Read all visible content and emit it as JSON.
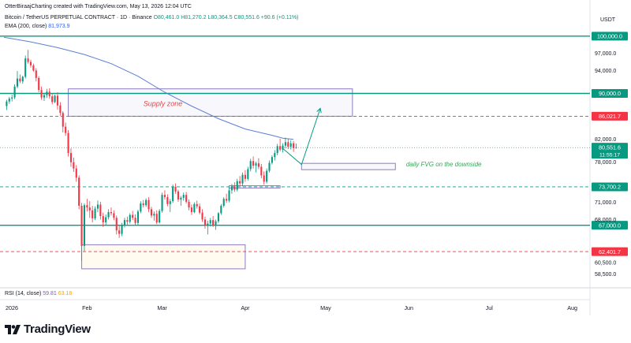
{
  "header": {
    "credit": "OtterBiraajCharting created with TradingView.com, May 13, 2026 12:04 UTC",
    "symbol": "Bitcoin / TetherUS PERPETUAL CONTRACT · 1D · Binance",
    "ohlc": "O80,461.0 H81,270.2 L80,364.5 C80,551.6 +90.6 (+0.11%)",
    "ema_label": "EMA (200, close)",
    "ema_value": "81,973.9",
    "currency": "USDT"
  },
  "rsi": {
    "label": "RSI (14, close)",
    "value1": "59.81",
    "value2": "63.18"
  },
  "brand": {
    "name": "TradingView"
  },
  "colors": {
    "up": "#089981",
    "down": "#f23645",
    "ema": "#5b7fd6",
    "level": "#089981",
    "zone": "#8e7cc3",
    "fvg_text": "#3aa55a",
    "supply_text": "#e64545"
  },
  "chart_data": {
    "type": "candlestick",
    "ylim": [
      56500,
      100800
    ],
    "x_tick_labels": [
      "2026",
      "Feb",
      "Mar",
      "Apr",
      "May",
      "Jun",
      "Jul",
      "Aug"
    ],
    "y_tick_labels": [
      "97,000.0",
      "94,000.0",
      "82,000.0",
      "78,000.0",
      "71,000.0",
      "68,000.0",
      "60,500.0",
      "58,500.0"
    ],
    "y_tick_values": [
      97000,
      94000,
      82000,
      78000,
      71000,
      68000,
      60500,
      58500
    ],
    "x_tick_days": [
      0,
      31,
      59,
      90,
      120,
      151,
      181,
      212
    ],
    "price_levels": [
      {
        "label": "100,000.0",
        "price": 100000,
        "style": "solid",
        "color": "#089981"
      },
      {
        "label": "90,000.0",
        "price": 90000,
        "style": "solid",
        "color": "#089981"
      },
      {
        "label": "86,021.7",
        "price": 86021.7,
        "style": "dashed",
        "color": "#f23645"
      },
      {
        "label": "73,700.2",
        "price": 73700.2,
        "style": "dashed",
        "color": "#089981"
      },
      {
        "label": "67,000.0",
        "price": 67000,
        "style": "solid",
        "color": "#089981"
      },
      {
        "label": "62,401.7",
        "price": 62401.7,
        "style": "dashed",
        "color": "#f23645"
      }
    ],
    "current_price": {
      "label": "80,551.6",
      "countdown": "11:55:17",
      "price": 80551.6
    },
    "annotations": [
      {
        "text": "Supply zone",
        "day": 52,
        "price": 87800
      },
      {
        "text": "daily FVG on the downside",
        "day": 150,
        "price": 77300
      }
    ],
    "zones": [
      {
        "name": "supply-zone",
        "d0": 24,
        "d1": 130,
        "p0": 86021.7,
        "p1": 90800
      },
      {
        "name": "daily-fvg-zone",
        "d0": 111,
        "d1": 146,
        "p0": 76700,
        "p1": 77800
      },
      {
        "name": "demand-zone",
        "d0": 29,
        "d1": 90,
        "p0": 59400,
        "p1": 63600
      },
      {
        "name": "small-fvg-zone",
        "d0": 84,
        "d1": 103,
        "p0": 73500,
        "p1": 73900
      }
    ],
    "projection": [
      [
        104,
        80400
      ],
      [
        111,
        77600
      ],
      [
        118,
        87400
      ]
    ],
    "ema": [
      [
        0,
        99800
      ],
      [
        10,
        99000
      ],
      [
        20,
        98000
      ],
      [
        30,
        96800
      ],
      [
        40,
        95200
      ],
      [
        50,
        93000
      ],
      [
        60,
        90200
      ],
      [
        70,
        87800
      ],
      [
        80,
        85600
      ],
      [
        90,
        83800
      ],
      [
        100,
        82700
      ],
      [
        104,
        82200
      ],
      [
        108,
        81974
      ]
    ],
    "candles": [
      [
        1,
        87800,
        88900,
        87100,
        88600
      ],
      [
        2,
        88600,
        89400,
        88200,
        89100
      ],
      [
        3,
        89100,
        89800,
        88600,
        89300
      ],
      [
        4,
        89300,
        91600,
        89000,
        91200
      ],
      [
        5,
        91200,
        93900,
        90900,
        92600
      ],
      [
        6,
        92600,
        93300,
        91800,
        92100
      ],
      [
        7,
        92100,
        93100,
        91700,
        92900
      ],
      [
        8,
        92900,
        96600,
        92600,
        96100
      ],
      [
        9,
        96100,
        97600,
        95200,
        95500
      ],
      [
        10,
        95500,
        95900,
        94500,
        94900
      ],
      [
        11,
        94900,
        95200,
        93800,
        94000
      ],
      [
        12,
        94000,
        94400,
        92100,
        92700
      ],
      [
        13,
        92700,
        93000,
        90200,
        90600
      ],
      [
        14,
        90600,
        91200,
        88900,
        89300
      ],
      [
        15,
        89300,
        90100,
        88700,
        89700
      ],
      [
        16,
        89700,
        90800,
        89200,
        90300
      ],
      [
        17,
        90300,
        90900,
        89100,
        89500
      ],
      [
        18,
        89500,
        89900,
        88100,
        88500
      ],
      [
        19,
        88500,
        89800,
        88300,
        89600
      ],
      [
        20,
        89600,
        90200,
        87200,
        87900
      ],
      [
        21,
        87900,
        88500,
        86100,
        86600
      ],
      [
        22,
        86600,
        86900,
        83200,
        84200
      ],
      [
        23,
        84200,
        84900,
        82600,
        83100
      ],
      [
        24,
        83100,
        83600,
        79000,
        79600
      ],
      [
        25,
        79600,
        80400,
        77200,
        78000
      ],
      [
        26,
        78000,
        78800,
        76300,
        76900
      ],
      [
        27,
        76900,
        77500,
        74600,
        75300
      ],
      [
        28,
        75300,
        75700,
        69800,
        70400
      ],
      [
        29,
        70400,
        70900,
        60800,
        63400
      ],
      [
        30,
        63400,
        70800,
        62500,
        70500
      ],
      [
        31,
        70500,
        71600,
        69400,
        70100
      ],
      [
        32,
        70100,
        71200,
        68300,
        69600
      ],
      [
        33,
        69600,
        70400,
        67500,
        68200
      ],
      [
        34,
        68200,
        70300,
        67900,
        69900
      ],
      [
        35,
        69900,
        71300,
        69300,
        70600
      ],
      [
        36,
        70600,
        71100,
        68000,
        68600
      ],
      [
        37,
        68600,
        69200,
        66700,
        67500
      ],
      [
        38,
        67500,
        68900,
        67100,
        68400
      ],
      [
        39,
        68400,
        69800,
        68000,
        69300
      ],
      [
        40,
        69300,
        70100,
        68700,
        69100
      ],
      [
        41,
        69100,
        69600,
        67900,
        68300
      ],
      [
        42,
        68300,
        68700,
        65400,
        66100
      ],
      [
        43,
        66100,
        66900,
        64800,
        65500
      ],
      [
        44,
        65500,
        67400,
        65100,
        67000
      ],
      [
        45,
        67000,
        68300,
        66600,
        67900
      ],
      [
        46,
        67900,
        68500,
        67100,
        67600
      ],
      [
        47,
        67600,
        69100,
        67300,
        68800
      ],
      [
        48,
        68800,
        69500,
        67900,
        68300
      ],
      [
        49,
        68300,
        68900,
        67100,
        67400
      ],
      [
        50,
        67400,
        69700,
        67100,
        69400
      ],
      [
        51,
        69400,
        71200,
        69100,
        70800
      ],
      [
        52,
        70800,
        71400,
        70100,
        70500
      ],
      [
        53,
        70500,
        71700,
        70200,
        71400
      ],
      [
        54,
        71400,
        71900,
        69300,
        69800
      ],
      [
        55,
        69800,
        70200,
        68300,
        68700
      ],
      [
        56,
        68700,
        69400,
        67800,
        69000
      ],
      [
        57,
        69000,
        69600,
        67200,
        67500
      ],
      [
        58,
        67500,
        69800,
        67300,
        69500
      ],
      [
        59,
        69500,
        72700,
        69200,
        72300
      ],
      [
        60,
        72300,
        73100,
        71500,
        71900
      ],
      [
        61,
        71900,
        72400,
        70300,
        70700
      ],
      [
        62,
        70700,
        71600,
        69300,
        71200
      ],
      [
        63,
        71200,
        74100,
        70900,
        73700
      ],
      [
        64,
        73700,
        74300,
        72500,
        72900
      ],
      [
        65,
        72900,
        73200,
        71100,
        71500
      ],
      [
        66,
        71500,
        72100,
        70400,
        71800
      ],
      [
        67,
        71800,
        72700,
        71300,
        72300
      ],
      [
        68,
        72300,
        72800,
        70800,
        71100
      ],
      [
        69,
        71100,
        71500,
        69600,
        70100
      ],
      [
        70,
        70100,
        70600,
        68800,
        69300
      ],
      [
        71,
        69300,
        71000,
        69100,
        70700
      ],
      [
        72,
        70700,
        71300,
        69900,
        70300
      ],
      [
        73,
        70300,
        70800,
        68900,
        69200
      ],
      [
        74,
        69200,
        69800,
        67600,
        68000
      ],
      [
        75,
        68000,
        68500,
        66400,
        66900
      ],
      [
        76,
        66900,
        67800,
        65400,
        67300
      ],
      [
        77,
        67300,
        68300,
        66800,
        67900
      ],
      [
        78,
        67900,
        68600,
        66700,
        67100
      ],
      [
        79,
        67100,
        68000,
        66200,
        67700
      ],
      [
        80,
        67700,
        69300,
        67400,
        69100
      ],
      [
        81,
        69100,
        70700,
        68800,
        70400
      ],
      [
        82,
        70400,
        71900,
        70100,
        71600
      ],
      [
        83,
        71600,
        72500,
        70900,
        71300
      ],
      [
        84,
        71300,
        73600,
        71000,
        73100
      ],
      [
        85,
        73100,
        74200,
        72500,
        73800
      ],
      [
        86,
        73800,
        74500,
        72800,
        73200
      ],
      [
        87,
        73200,
        75100,
        72900,
        74700
      ],
      [
        88,
        74700,
        75600,
        73900,
        74300
      ],
      [
        89,
        74300,
        76200,
        73800,
        75800
      ],
      [
        90,
        75800,
        76600,
        74600,
        75100
      ],
      [
        91,
        75100,
        77200,
        74800,
        76800
      ],
      [
        92,
        76800,
        78600,
        76400,
        78200
      ],
      [
        93,
        78200,
        79000,
        76900,
        77400
      ],
      [
        94,
        77400,
        78100,
        76200,
        77800
      ],
      [
        95,
        77800,
        78700,
        76800,
        77200
      ],
      [
        96,
        77200,
        77700,
        75200,
        75700
      ],
      [
        97,
        75700,
        76400,
        74100,
        74600
      ],
      [
        98,
        74600,
        76900,
        74300,
        76500
      ],
      [
        99,
        76500,
        78300,
        76200,
        77900
      ],
      [
        100,
        77900,
        79200,
        77600,
        78900
      ],
      [
        101,
        78900,
        80100,
        78300,
        79600
      ],
      [
        102,
        79600,
        81200,
        79200,
        80800
      ],
      [
        103,
        80800,
        82100,
        79900,
        80200
      ],
      [
        104,
        80200,
        81300,
        79700,
        80900
      ],
      [
        105,
        80900,
        82300,
        80400,
        81500
      ],
      [
        106,
        81500,
        82100,
        80300,
        80700
      ],
      [
        107,
        80700,
        81800,
        80200,
        81300
      ],
      [
        108,
        81300,
        81700,
        79800,
        80461
      ],
      [
        109,
        80461,
        81270,
        80364,
        80552
      ]
    ]
  }
}
